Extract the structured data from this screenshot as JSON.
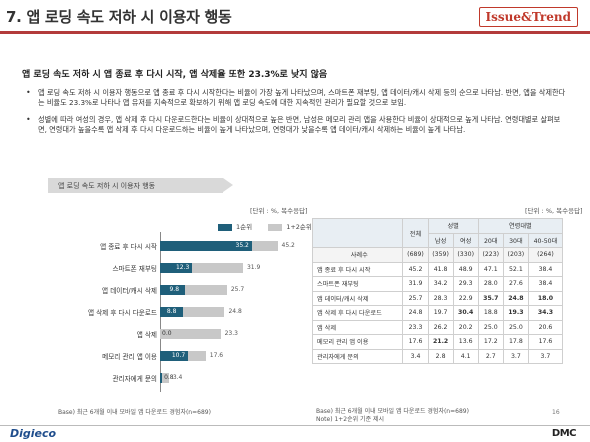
{
  "header": {
    "title": "7. 앱 로딩 속도 저하 시 이용자 행동",
    "brand": "Issue&Trend"
  },
  "headline": "앱 로딩 속도 저하 시 앱 종료 후 다시 시작, 앱 삭제율 또한 23.3%로 낮지 않음",
  "bullets": [
    "앱 로딩 속도 저하 시 이용자 행동으로 앱 종료 후 다시 시작한다는 비율이 가장 높게 나타났으며, 스마트폰 재부팅, 앱 데이터/캐시 삭제 등의 순으로 나타남. 반면, 앱을 삭제한다는 비율도 23.3%로 나타나 앱 유저를 지속적으로 확보하기 위해 앱 로딩 속도에 대한 지속적인 관리가 필요할 것으로 보임.",
    "성별에 따라 여성의 경우, 앱 삭제 후 다시 다운로드한다는 비율이 상대적으로 높은 반면, 남성은 메모리 관리 앱을 사용한다 비율이 상대적으로 높게 나타남. 연령대별로 살펴보면, 연령대가 높을수록 앱 삭제 후 다시 다운로드하는 비율이 높게 나타났으며, 연령대가 낮을수록 앱 데이터/캐시 삭제하는 비율이 높게 나타남."
  ],
  "chart": {
    "panel_title": "앱 로딩 속도 저하 시 이용자 행동",
    "unit": "[단위 : %, 복수응답]",
    "base": "Base) 최근 6개월 이내 모바일 앱 다운로드 경험자(n=689)",
    "colors": {
      "first": "#1f5f7a",
      "second": "#c8c8c8"
    }
  },
  "chart_data": {
    "type": "bar",
    "orientation": "horizontal",
    "categories": [
      "앱 종료 후 다시 시작",
      "스마트폰 재부팅",
      "앱 데이터/캐시 삭제",
      "앱 삭제 후 다시 다운로드",
      "앱 삭제",
      "메모리 관리 앱 이용",
      "관리자에게 문의"
    ],
    "series": [
      {
        "name": "1순위",
        "values": [
          35.2,
          12.3,
          9.8,
          8.8,
          0.0,
          10.7,
          0.8
        ]
      },
      {
        "name": "1+2순위",
        "values": [
          45.2,
          31.9,
          25.7,
          24.8,
          23.3,
          17.6,
          3.4
        ]
      }
    ],
    "xlim": [
      0,
      50
    ],
    "legend": "top"
  },
  "table": {
    "unit": "[단위 : %, 복수응답]",
    "header_total": "전체",
    "group_gender": "성별",
    "group_age": "연령대별",
    "cols": [
      "남성",
      "여성",
      "20대",
      "30대",
      "40-50대"
    ],
    "n_label": "사례수",
    "n_values": [
      "(689)",
      "(359)",
      "(330)",
      "(223)",
      "(203)",
      "(264)"
    ],
    "rows": [
      {
        "label": "앱 종료 후 다시 시작",
        "values": [
          "45.2",
          "41.8",
          "48.9",
          "47.1",
          "52.1",
          "38.4"
        ],
        "bold": []
      },
      {
        "label": "스마트폰 재부팅",
        "values": [
          "31.9",
          "34.2",
          "29.3",
          "28.0",
          "27.6",
          "38.4"
        ],
        "bold": []
      },
      {
        "label": "앱 데이터/캐시 삭제",
        "values": [
          "25.7",
          "28.3",
          "22.9",
          "35.7",
          "24.8",
          "18.0"
        ],
        "bold": [
          3,
          4,
          5
        ]
      },
      {
        "label": "앱 삭제 후 다시 다운로드",
        "values": [
          "24.8",
          "19.7",
          "30.4",
          "18.8",
          "19.3",
          "34.3"
        ],
        "bold": [
          2,
          4,
          5
        ]
      },
      {
        "label": "앱 삭제",
        "values": [
          "23.3",
          "26.2",
          "20.2",
          "25.0",
          "25.0",
          "20.6"
        ],
        "bold": []
      },
      {
        "label": "메모리 관리 앱 이용",
        "values": [
          "17.6",
          "21.2",
          "13.6",
          "17.2",
          "17.8",
          "17.6"
        ],
        "bold": [
          1
        ]
      },
      {
        "label": "관리자에게 문의",
        "values": [
          "3.4",
          "2.8",
          "4.1",
          "2.7",
          "3.7",
          "3.7"
        ],
        "bold": []
      }
    ],
    "base": "Base) 최근 6개월 이내 모바일 앱 다운로드 경험자(n=689)",
    "note": "Note) 1+2순위 기준 제시"
  },
  "page_number": "16",
  "footer": {
    "left_logo": "Digieco",
    "right_logo": "DMC"
  }
}
